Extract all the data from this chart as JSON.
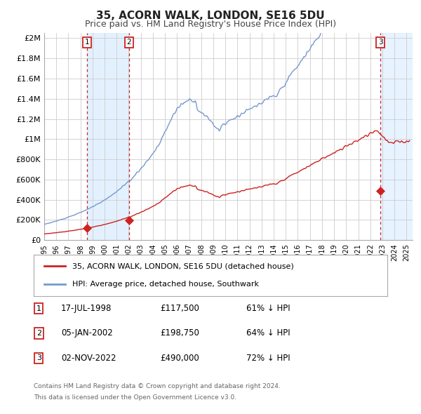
{
  "title": "35, ACORN WALK, LONDON, SE16 5DU",
  "subtitle": "Price paid vs. HM Land Registry's House Price Index (HPI)",
  "title_fontsize": 11,
  "subtitle_fontsize": 9,
  "background_color": "#ffffff",
  "plot_bg_color": "#ffffff",
  "grid_color": "#cccccc",
  "hpi_line_color": "#7799cc",
  "price_line_color": "#cc2222",
  "shade_color": "#ddeeff",
  "transactions": [
    {
      "label": "1",
      "date_num": 1998.54,
      "price": 117500,
      "date_str": "17-JUL-1998",
      "hpi_pct": "61% ↓ HPI"
    },
    {
      "label": "2",
      "date_num": 2002.02,
      "price": 198750,
      "date_str": "05-JAN-2002",
      "hpi_pct": "64% ↓ HPI"
    },
    {
      "label": "3",
      "date_num": 2022.84,
      "price": 490000,
      "date_str": "02-NOV-2022",
      "hpi_pct": "72% ↓ HPI"
    }
  ],
  "legend_entries": [
    "35, ACORN WALK, LONDON, SE16 5DU (detached house)",
    "HPI: Average price, detached house, Southwark"
  ],
  "footer_line1": "Contains HM Land Registry data © Crown copyright and database right 2024.",
  "footer_line2": "This data is licensed under the Open Government Licence v3.0.",
  "xmin": 1995.0,
  "xmax": 2025.5,
  "ymin": 0,
  "ymax": 2050000,
  "yticks": [
    0,
    200000,
    400000,
    600000,
    800000,
    1000000,
    1200000,
    1400000,
    1600000,
    1800000,
    2000000
  ],
  "ytick_labels": [
    "£0",
    "£200K",
    "£400K",
    "£600K",
    "£800K",
    "£1M",
    "£1.2M",
    "£1.4M",
    "£1.6M",
    "£1.8M",
    "£2M"
  ],
  "xtick_years": [
    1995,
    1996,
    1997,
    1998,
    1999,
    2000,
    2001,
    2002,
    2003,
    2004,
    2005,
    2006,
    2007,
    2008,
    2009,
    2010,
    2011,
    2012,
    2013,
    2014,
    2015,
    2016,
    2017,
    2018,
    2019,
    2020,
    2021,
    2022,
    2023,
    2024,
    2025
  ]
}
